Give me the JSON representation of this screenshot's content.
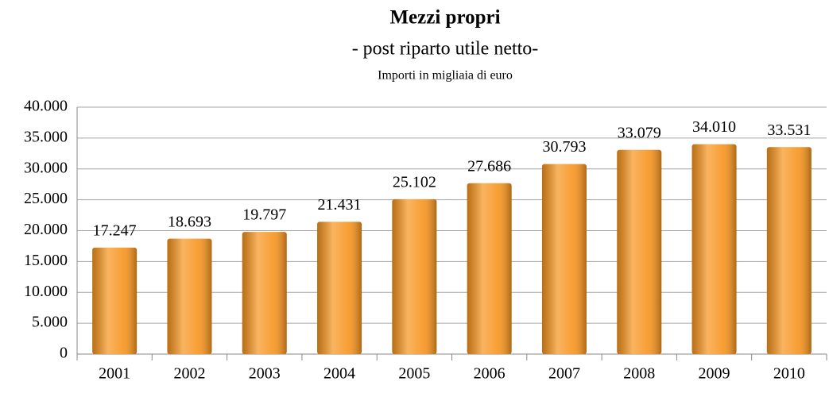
{
  "chart_data": {
    "type": "bar",
    "title": "Mezzi propri",
    "subtitle": "- post riparto utile netto-",
    "note": "Importi in migliaia di euro",
    "categories": [
      "2001",
      "2002",
      "2003",
      "2004",
      "2005",
      "2006",
      "2007",
      "2008",
      "2009",
      "2010"
    ],
    "values": [
      17247,
      18693,
      19797,
      21431,
      25102,
      27686,
      30793,
      33079,
      34010,
      33531
    ],
    "value_labels": [
      "17.247",
      "18.693",
      "19.797",
      "21.431",
      "25.102",
      "27.686",
      "30.793",
      "33.079",
      "34.010",
      "33.531"
    ],
    "color": "#f7941d",
    "ylim": [
      0,
      40000
    ],
    "yticks": [
      0,
      {
        "value": 5000,
        "label": "5.000"
      },
      {
        "value": 10000,
        "label": "10.000"
      },
      {
        "value": 15000,
        "label": "15.000"
      },
      {
        "value": 20000,
        "label": "20.000"
      },
      {
        "value": 25000,
        "label": "25.000"
      },
      {
        "value": 30000,
        "label": "30.000"
      },
      {
        "value": 35000,
        "label": "35.000"
      },
      {
        "value": 40000,
        "label": "40.000"
      }
    ],
    "grid": true
  }
}
